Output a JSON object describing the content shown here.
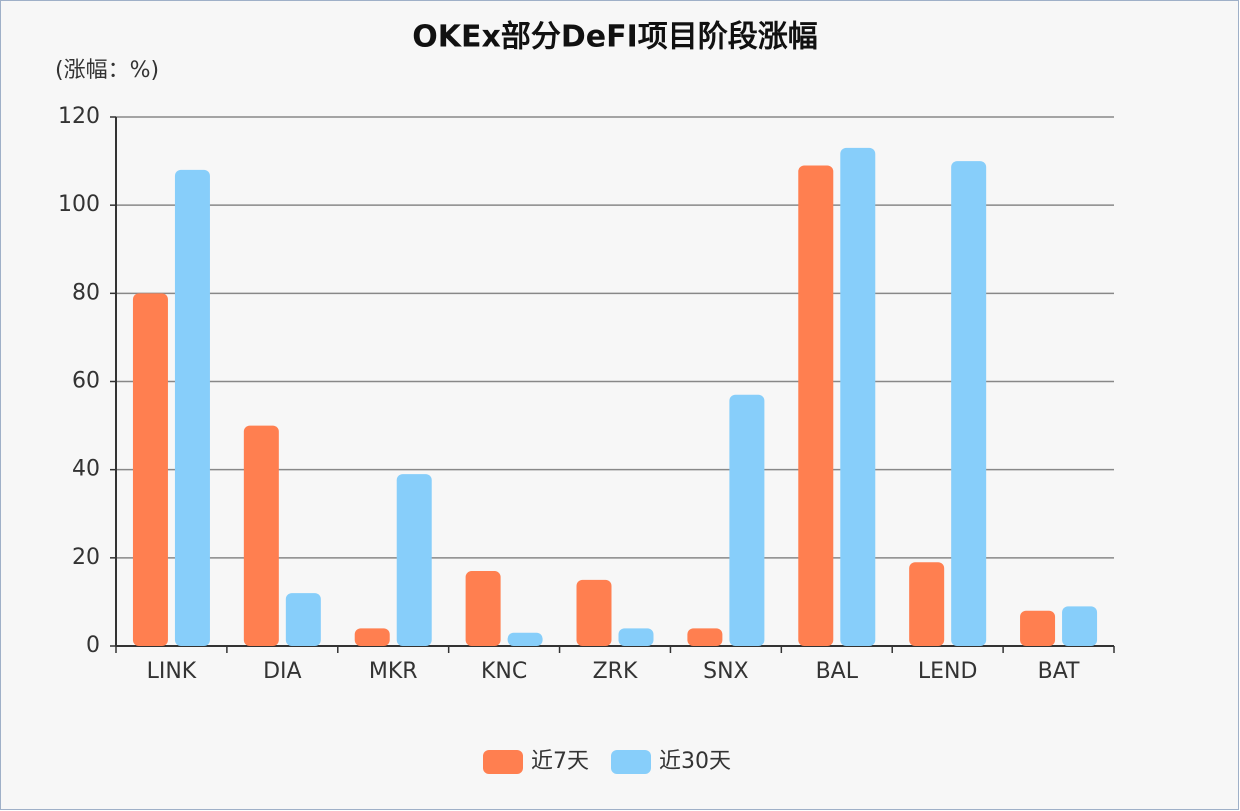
{
  "chart_data": {
    "type": "bar",
    "title": "OKEx部分DeFI项目阶段涨幅",
    "y_label": "(涨幅：%)",
    "categories": [
      "LINK",
      "DIA",
      "MKR",
      "KNC",
      "ZRK",
      "SNX",
      "BAL",
      "LEND",
      "BAT"
    ],
    "series": [
      {
        "name": "近7天",
        "color": "#ff7f50",
        "values": [
          80,
          50,
          4,
          17,
          15,
          4,
          109,
          19,
          8
        ]
      },
      {
        "name": "近30天",
        "color": "#87cefa",
        "values": [
          108,
          12,
          39,
          3,
          4,
          57,
          113,
          110,
          9
        ]
      }
    ],
    "ylim": [
      0,
      120
    ],
    "yticks": [
      0,
      20,
      40,
      60,
      80,
      100,
      120
    ],
    "grid": true,
    "legend": "bottom"
  }
}
